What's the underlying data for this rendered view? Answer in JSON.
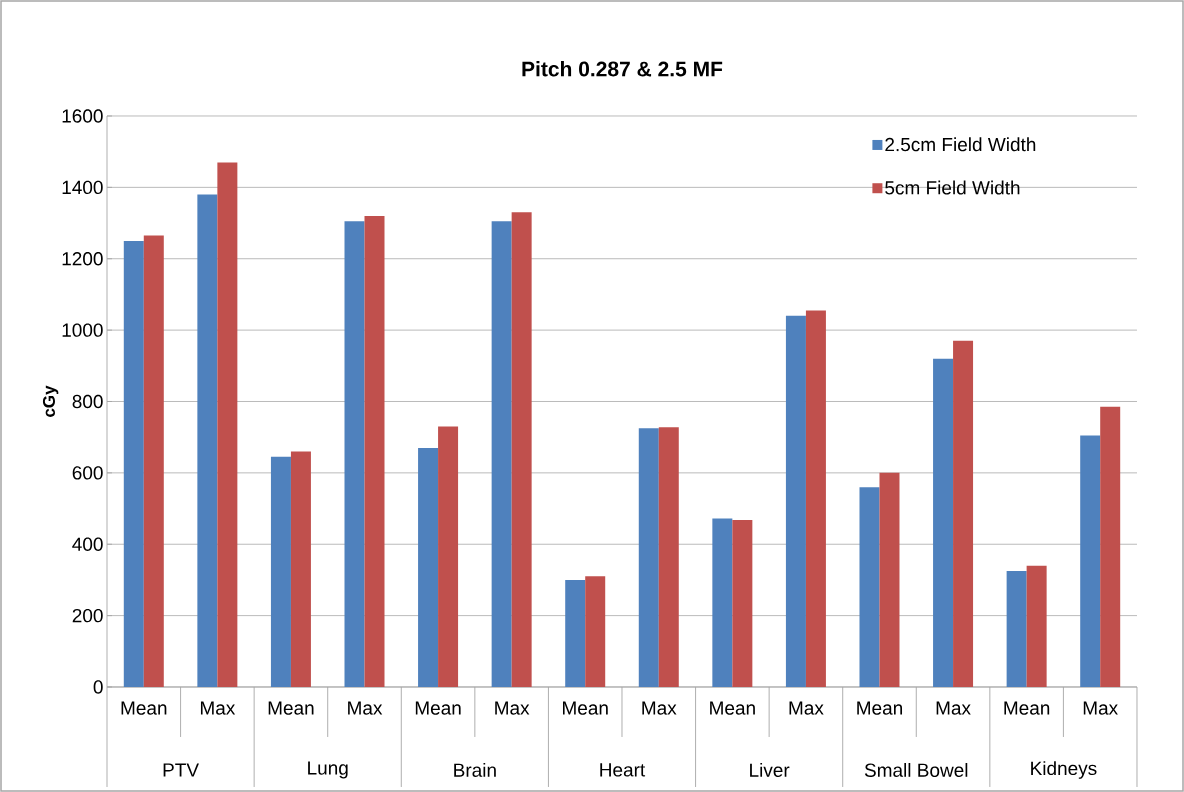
{
  "chart_data": {
    "type": "bar",
    "title": "Pitch 0.287 & 2.5 MF",
    "ylabel": "cGy",
    "categories": [
      "Mean",
      "Max",
      "Mean",
      "Max",
      "Mean",
      "Max",
      "Mean",
      "Max",
      "Mean",
      "Max",
      "Mean",
      "Max",
      "Mean",
      "Max"
    ],
    "annotations": [
      "PTV",
      "Lung",
      "Brain",
      "Heart",
      "Liver",
      "Small Bowel",
      "Kidneys"
    ],
    "series": [
      {
        "name": "2.5cm Field Width",
        "color": "#4f81bd",
        "values": [
          1250,
          1380,
          645,
          1305,
          670,
          1305,
          300,
          725,
          472,
          1040,
          560,
          920,
          325,
          705
        ]
      },
      {
        "name": "5cm Field Width",
        "color": "#c0504d",
        "values": [
          1265,
          1470,
          660,
          1320,
          730,
          1330,
          310,
          728,
          468,
          1055,
          600,
          970,
          340,
          785
        ]
      }
    ],
    "ylim": [
      0,
      1600
    ],
    "yticks": [
      0,
      200,
      400,
      600,
      800,
      1000,
      1200,
      1400,
      1600
    ],
    "grid": "y",
    "legend": "top right"
  }
}
